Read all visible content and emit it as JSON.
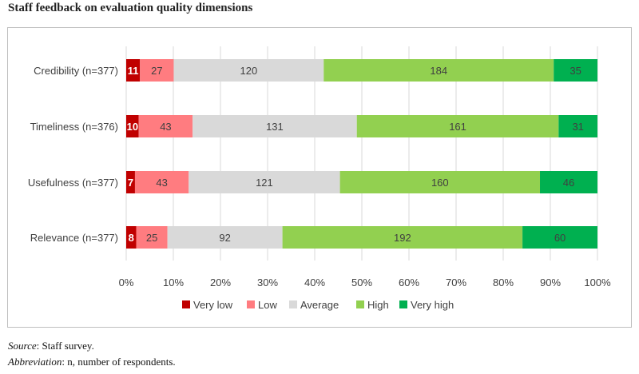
{
  "title": "Staff feedback on evaluation quality dimensions",
  "footnotes": {
    "source_label": "Source",
    "source_text": ": Staff survey.",
    "abbr_label": "Abbreviation",
    "abbr_text": ": n, number of respondents."
  },
  "chart_data": {
    "type": "bar",
    "orientation": "horizontal",
    "stacked": "percent",
    "categories": [
      "Credibility (n=377)",
      "Timeliness (n=376)",
      "Usefulness (n=377)",
      "Relevance (n=377)"
    ],
    "series": [
      {
        "name": "Very low",
        "color": "#c00000",
        "values": [
          11,
          10,
          7,
          8
        ]
      },
      {
        "name": "Low",
        "color": "#ff7c80",
        "values": [
          27,
          43,
          43,
          25
        ]
      },
      {
        "name": "Average",
        "color": "#d9d9d9",
        "values": [
          120,
          131,
          121,
          92
        ]
      },
      {
        "name": "High",
        "color": "#92d050",
        "values": [
          184,
          161,
          160,
          192
        ]
      },
      {
        "name": "Very high",
        "color": "#00b050",
        "values": [
          35,
          31,
          46,
          60
        ]
      }
    ],
    "xlim": [
      0,
      100
    ],
    "x_ticks": [
      "0%",
      "10%",
      "20%",
      "30%",
      "40%",
      "50%",
      "60%",
      "70%",
      "80%",
      "90%",
      "100%"
    ],
    "grid": true,
    "legend": "bottom",
    "title": "Staff feedback on evaluation quality dimensions"
  }
}
